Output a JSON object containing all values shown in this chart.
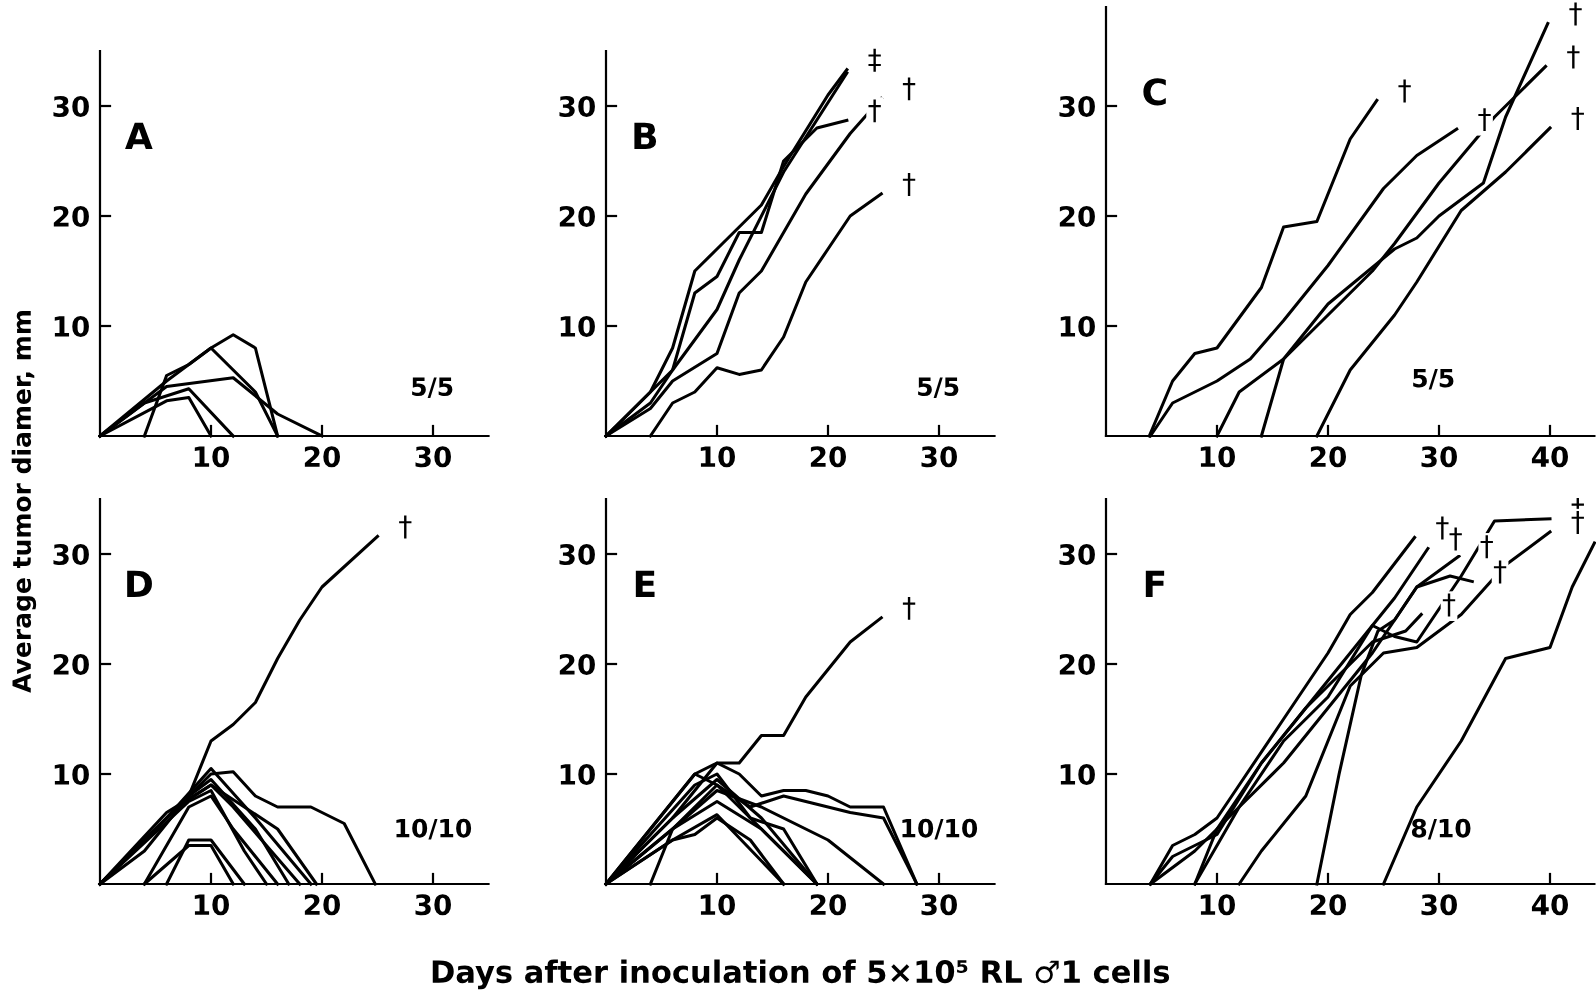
{
  "chart_data": [
    {
      "type": "line",
      "title": "A",
      "xlim": [
        0,
        35
      ],
      "ylim": [
        0,
        35
      ],
      "xticks": [
        10,
        20,
        30
      ],
      "yticks": [
        10,
        20,
        30
      ],
      "series": [
        {
          "color": "#000000",
          "x": [
            0,
            6,
            10,
            12,
            14,
            16
          ],
          "values": [
            0,
            5,
            8,
            9.2,
            8,
            0
          ]
        },
        {
          "color": "#000000",
          "x": [
            4,
            6,
            8,
            10,
            14,
            16
          ],
          "values": [
            0,
            5.5,
            6.5,
            8,
            4,
            0
          ]
        },
        {
          "color": "#000000",
          "x": [
            0,
            6,
            12,
            16,
            20
          ],
          "values": [
            0,
            4.5,
            5.3,
            2,
            0
          ]
        },
        {
          "color": "#000000",
          "x": [
            0,
            4,
            8,
            12
          ],
          "values": [
            0,
            3,
            4.3,
            0
          ]
        },
        {
          "color": "#000000",
          "x": [
            0,
            6,
            8,
            10
          ],
          "values": [
            0,
            3.2,
            3.5,
            0
          ]
        }
      ],
      "annotations": [
        "5/5"
      ]
    },
    {
      "type": "line",
      "title": "B",
      "xlim": [
        0,
        35
      ],
      "ylim": [
        0,
        35
      ],
      "xticks": [
        10,
        20,
        30
      ],
      "yticks": [
        10,
        20,
        30
      ],
      "series": [
        {
          "color": "#000000",
          "x": [
            0,
            4,
            6,
            8,
            10,
            14,
            16,
            20,
            21.7
          ],
          "values": [
            0,
            4,
            8,
            15,
            17,
            21,
            24.5,
            31,
            33.3
          ]
        },
        {
          "color": "#000000",
          "x": [
            0,
            6,
            8,
            10,
            12,
            14,
            16,
            19,
            21.7
          ],
          "values": [
            0,
            6,
            13,
            14.5,
            18.5,
            18.5,
            25,
            28,
            28.7
          ]
        },
        {
          "color": "#000000",
          "x": [
            0,
            4,
            6,
            10,
            12,
            16,
            21.7
          ],
          "values": [
            0,
            3,
            6,
            11.5,
            16,
            24,
            33
          ]
        },
        {
          "color": "#000000",
          "x": [
            0,
            4,
            6,
            10,
            12,
            14,
            18,
            22,
            24.8
          ],
          "values": [
            0,
            2.5,
            5,
            7.5,
            13,
            15,
            22,
            27.5,
            30.7
          ]
        },
        {
          "color": "#000000",
          "x": [
            4,
            6,
            8,
            10,
            12,
            14,
            16,
            18,
            20,
            22,
            24.8
          ],
          "values": [
            0,
            3,
            4,
            6.2,
            5.6,
            6,
            9,
            14,
            17,
            20,
            22
          ]
        }
      ],
      "annotations": [
        "5/5",
        {
          "text": "‡",
          "x": 21.7,
          "y": 33.3
        },
        {
          "text": "†",
          "x": 21.7,
          "y": 28.7
        },
        {
          "text": "†",
          "x": 24.8,
          "y": 30.7
        },
        {
          "text": "†",
          "x": 24.8,
          "y": 22
        }
      ]
    },
    {
      "type": "line",
      "title": "C",
      "xlim": [
        0,
        44
      ],
      "ylim": [
        0,
        39
      ],
      "xticks": [
        10,
        20,
        30,
        40
      ],
      "yticks": [
        10,
        20,
        30
      ],
      "series": [
        {
          "color": "#000000",
          "x": [
            3.9,
            6,
            8,
            10,
            14,
            16,
            19,
            22,
            24.4
          ],
          "values": [
            0,
            5,
            7.5,
            8,
            13.5,
            19,
            19.5,
            27,
            30.5
          ]
        },
        {
          "color": "#000000",
          "x": [
            4,
            6,
            10,
            13,
            16,
            20,
            25,
            28,
            31.6
          ],
          "values": [
            0,
            3,
            5,
            7,
            10.5,
            15.5,
            22.5,
            25.5,
            27.9
          ]
        },
        {
          "color": "#000000",
          "x": [
            10,
            12,
            16,
            20,
            26,
            28,
            30,
            34,
            36,
            39.8
          ],
          "values": [
            0,
            4,
            7,
            12,
            17,
            18,
            20,
            23,
            29,
            37.5
          ]
        },
        {
          "color": "#000000",
          "x": [
            14,
            16,
            20,
            24,
            26,
            30,
            35,
            39.6
          ],
          "values": [
            0,
            7,
            11,
            15,
            17.5,
            23,
            29,
            33.6
          ]
        },
        {
          "color": "#000000",
          "x": [
            19,
            22,
            26,
            28,
            32,
            36,
            40
          ],
          "values": [
            0,
            6,
            11,
            14,
            20.5,
            24,
            28
          ]
        }
      ],
      "annotations": [
        "5/5",
        {
          "text": "†",
          "x": 24.4,
          "y": 30.5
        },
        {
          "text": "†",
          "x": 31.6,
          "y": 27.9
        },
        {
          "text": "†",
          "x": 39.8,
          "y": 37.5
        },
        {
          "text": "†",
          "x": 39.6,
          "y": 33.6
        },
        {
          "text": "†",
          "x": 40,
          "y": 28
        }
      ]
    },
    {
      "type": "line",
      "title": "D",
      "ylabel": "Average tumor diamer, mm",
      "xlim": [
        0,
        35
      ],
      "ylim": [
        0,
        35
      ],
      "xticks": [
        10,
        20,
        30
      ],
      "yticks": [
        10,
        20,
        30
      ],
      "series": [
        {
          "color": "#000000",
          "x": [
            0,
            4,
            8,
            10,
            12,
            14,
            16,
            18,
            20,
            25
          ],
          "values": [
            0,
            3,
            8,
            13,
            14.5,
            16.5,
            20.5,
            24,
            27,
            31.6
          ]
        },
        {
          "color": "#000000",
          "x": [
            0,
            6,
            10,
            12,
            14,
            16,
            19,
            22,
            24.8
          ],
          "values": [
            0,
            6,
            10,
            10.2,
            8,
            7,
            7,
            5.5,
            0
          ]
        },
        {
          "color": "#000000",
          "x": [
            0,
            6,
            10,
            14,
            19
          ],
          "values": [
            0,
            6,
            10.5,
            6,
            0
          ]
        },
        {
          "color": "#000000",
          "x": [
            0,
            6,
            10,
            16,
            19.5
          ],
          "values": [
            0,
            6.5,
            9,
            5,
            0
          ]
        },
        {
          "color": "#000000",
          "x": [
            0,
            8,
            10,
            14,
            17
          ],
          "values": [
            0,
            8,
            9.5,
            5,
            0
          ]
        },
        {
          "color": "#000000",
          "x": [
            4,
            8,
            10,
            12,
            16
          ],
          "values": [
            0,
            7,
            8,
            5,
            0
          ]
        },
        {
          "color": "#000000",
          "x": [
            0,
            8,
            10,
            13,
            15
          ],
          "values": [
            0,
            7.5,
            8.5,
            3,
            0
          ]
        },
        {
          "color": "#000000",
          "x": [
            6,
            8,
            10,
            13
          ],
          "values": [
            0,
            4,
            4,
            0
          ]
        },
        {
          "color": "#000000",
          "x": [
            4,
            8,
            10,
            12
          ],
          "values": [
            0,
            3.5,
            3.5,
            0
          ]
        },
        {
          "color": "#000000",
          "x": [
            0,
            7,
            10,
            12,
            18
          ],
          "values": [
            0,
            7,
            9,
            7,
            0
          ]
        }
      ],
      "annotations": [
        "10/10",
        {
          "text": "†",
          "x": 25,
          "y": 31.6
        }
      ]
    },
    {
      "type": "line",
      "title": "E",
      "xlabel": "Days after inoculation of 5×10⁵ RL ♂1 cells",
      "xlim": [
        0,
        35
      ],
      "ylim": [
        0,
        35
      ],
      "xticks": [
        10,
        20,
        30
      ],
      "yticks": [
        10,
        20,
        30
      ],
      "series": [
        {
          "color": "#000000",
          "x": [
            0,
            6,
            10,
            12,
            14,
            16,
            18,
            20,
            22,
            24.8
          ],
          "values": [
            0,
            6,
            11,
            11,
            13.5,
            13.5,
            17,
            19.5,
            22,
            24.2
          ]
        },
        {
          "color": "#000000",
          "x": [
            0,
            8,
            10,
            12,
            14,
            16,
            18,
            20,
            22,
            25,
            28
          ],
          "values": [
            0,
            10,
            11,
            10,
            8,
            8.5,
            8.5,
            8,
            7,
            7,
            0
          ]
        },
        {
          "color": "#000000",
          "x": [
            0,
            6,
            10,
            13,
            16,
            22,
            25,
            28
          ],
          "values": [
            0,
            5,
            9,
            7,
            8,
            6.5,
            6,
            0
          ]
        },
        {
          "color": "#000000",
          "x": [
            0,
            6,
            10,
            14,
            20,
            25
          ],
          "values": [
            0,
            5,
            8.5,
            7,
            4,
            0
          ]
        },
        {
          "color": "#000000",
          "x": [
            0,
            6,
            10,
            14,
            19
          ],
          "values": [
            0,
            6,
            9.5,
            6,
            0
          ]
        },
        {
          "color": "#000000",
          "x": [
            4,
            6,
            10,
            14,
            19
          ],
          "values": [
            0,
            5,
            7.5,
            5,
            0
          ]
        },
        {
          "color": "#000000",
          "x": [
            0,
            6,
            8,
            10,
            13,
            16
          ],
          "values": [
            0,
            4,
            4.5,
            6,
            4,
            0
          ]
        },
        {
          "color": "#000000",
          "x": [
            0,
            8,
            10,
            13,
            16,
            19
          ],
          "values": [
            0,
            9,
            10,
            6,
            5,
            0
          ]
        },
        {
          "color": "#000000",
          "x": [
            0,
            6,
            10,
            16
          ],
          "values": [
            0,
            4,
            6.3,
            0
          ]
        },
        {
          "color": "#000000",
          "x": [
            0,
            8,
            10,
            14,
            19
          ],
          "values": [
            0,
            10,
            9,
            5,
            0
          ]
        }
      ],
      "annotations": [
        "10/10",
        {
          "text": "†",
          "x": 24.8,
          "y": 24.2
        }
      ]
    },
    {
      "type": "line",
      "title": "F",
      "xlim": [
        0,
        44
      ],
      "ylim": [
        0,
        35
      ],
      "xticks": [
        10,
        20,
        30,
        40
      ],
      "yticks": [
        10,
        20,
        30
      ],
      "series": [
        {
          "color": "#000000",
          "x": [
            4,
            6,
            8,
            10,
            12,
            16,
            20,
            22,
            24,
            27.8
          ],
          "values": [
            0,
            3.5,
            4.5,
            6,
            9,
            15,
            21,
            24.5,
            26.5,
            31.5
          ]
        },
        {
          "color": "#000000",
          "x": [
            4,
            6,
            10,
            14,
            18,
            22,
            26,
            29
          ],
          "values": [
            0,
            2.5,
            4.5,
            11,
            16,
            21,
            26,
            30.5
          ]
        },
        {
          "color": "#000000",
          "x": [
            8,
            10,
            14,
            18,
            22,
            24,
            27,
            28.4
          ],
          "values": [
            0,
            5,
            11,
            16,
            20,
            22,
            23,
            24.5
          ]
        },
        {
          "color": "#000000",
          "x": [
            4,
            8,
            10,
            12,
            16,
            20,
            24,
            28,
            31.8
          ],
          "values": [
            0,
            3,
            5,
            7,
            11,
            16,
            21,
            27,
            29.8
          ]
        },
        {
          "color": "#000000",
          "x": [
            8,
            12,
            16,
            20,
            24,
            26,
            28,
            30,
            32,
            35,
            40
          ],
          "values": [
            0,
            7,
            13,
            17,
            23.5,
            22.5,
            22,
            25,
            28,
            33,
            33.2
          ]
        },
        {
          "color": "#000000",
          "x": [
            12,
            14,
            18,
            20,
            22,
            25,
            28,
            32,
            36,
            40
          ],
          "values": [
            0,
            3,
            8,
            13,
            18,
            21,
            21.5,
            24.5,
            29,
            32
          ]
        },
        {
          "color": "#000000",
          "x": [
            19,
            21,
            23,
            24.5,
            26,
            28,
            31,
            33
          ],
          "values": [
            0,
            10,
            19,
            23,
            24,
            27,
            28,
            27.5
          ]
        },
        {
          "color": "#000000",
          "x": [
            25,
            28,
            32,
            36,
            38,
            40,
            42,
            44
          ],
          "values": [
            0,
            7,
            13,
            20.5,
            21,
            21.5,
            27,
            31
          ]
        }
      ],
      "annotations": [
        "8/10",
        {
          "text": "†",
          "x": 28.4,
          "y": 24.5
        },
        {
          "text": "†",
          "x": 27.8,
          "y": 31.5
        },
        {
          "text": "†",
          "x": 29,
          "y": 30.5
        },
        {
          "text": "†",
          "x": 31.8,
          "y": 29.8
        },
        {
          "text": "†",
          "x": 33,
          "y": 27.5
        },
        {
          "text": "†",
          "x": 40,
          "y": 33.2
        },
        {
          "text": "†",
          "x": 40,
          "y": 32
        }
      ]
    }
  ]
}
